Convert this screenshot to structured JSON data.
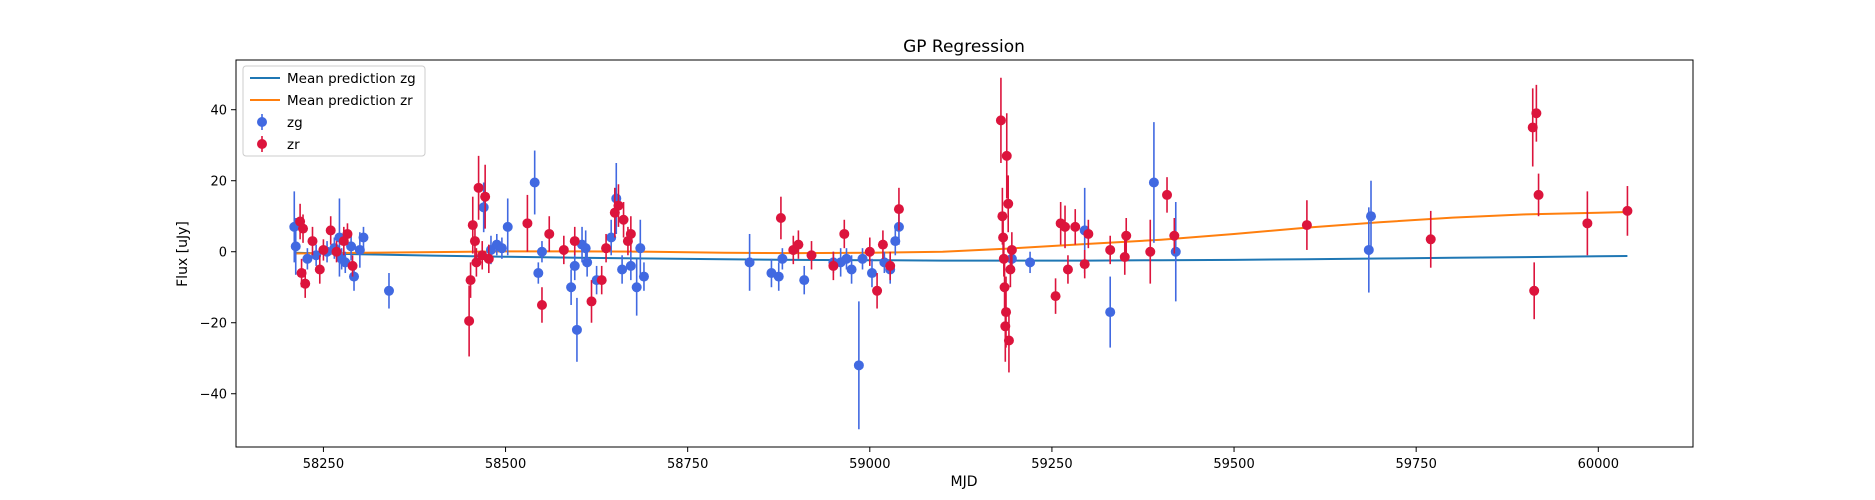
{
  "chart_data": {
    "type": "scatter",
    "title": "GP Regression",
    "xlabel": "MJD",
    "ylabel": "Flux [uJy]",
    "xlim": [
      58130,
      60130
    ],
    "ylim": [
      -55,
      54
    ],
    "xticks": [
      58250,
      58500,
      58750,
      59000,
      59250,
      59500,
      59750,
      60000
    ],
    "xtick_labels": [
      "58250",
      "58500",
      "58750",
      "59000",
      "59250",
      "59500",
      "59750",
      "60000"
    ],
    "yticks": [
      -40,
      -20,
      0,
      20,
      40
    ],
    "ytick_labels": [
      "−40",
      "−20",
      "0",
      "20",
      "40"
    ],
    "grid": false,
    "legend": {
      "position": "top-left",
      "entries": [
        {
          "label": "Mean prediction zg",
          "kind": "line",
          "color": "#1f77b4"
        },
        {
          "label": "Mean prediction zr",
          "kind": "line",
          "color": "#ff7f0e"
        },
        {
          "label": "zg",
          "kind": "errorbar",
          "color": "#4169e1"
        },
        {
          "label": "zr",
          "kind": "errorbar",
          "color": "#dc143c"
        }
      ]
    },
    "lines": [
      {
        "name": "Mean prediction zg",
        "color": "#1f77b4",
        "x": [
          58210,
          58300,
          58400,
          58500,
          58600,
          58700,
          58800,
          58900,
          59000,
          59100,
          59200,
          59300,
          59400,
          59500,
          59600,
          59700,
          59800,
          59900,
          60000,
          60040
        ],
        "y": [
          -0.3,
          -0.7,
          -1.1,
          -1.4,
          -1.7,
          -1.9,
          -2.1,
          -2.3,
          -2.4,
          -2.5,
          -2.5,
          -2.5,
          -2.4,
          -2.3,
          -2.1,
          -1.9,
          -1.7,
          -1.5,
          -1.3,
          -1.2
        ]
      },
      {
        "name": "Mean prediction zr",
        "color": "#ff7f0e",
        "x": [
          58210,
          58300,
          58400,
          58500,
          58600,
          58700,
          58800,
          58900,
          59000,
          59100,
          59200,
          59300,
          59400,
          59500,
          59600,
          59700,
          59800,
          59900,
          60000,
          60040
        ],
        "y": [
          -0.5,
          -0.3,
          -0.1,
          0.1,
          0.1,
          0.0,
          -0.3,
          -0.4,
          -0.3,
          0.0,
          1.0,
          2.2,
          3.4,
          5.0,
          6.8,
          8.3,
          9.6,
          10.5,
          11.0,
          11.2
        ]
      }
    ],
    "series": [
      {
        "name": "zg",
        "color": "#4169e1",
        "points": [
          [
            58210,
            7,
            10
          ],
          [
            58212,
            1.5,
            8
          ],
          [
            58228,
            -2,
            3
          ],
          [
            58240,
            -1,
            3
          ],
          [
            58255,
            0,
            3
          ],
          [
            58265,
            1,
            3
          ],
          [
            58272,
            4,
            11
          ],
          [
            58275,
            -2,
            3
          ],
          [
            58280,
            -3,
            3
          ],
          [
            58288,
            1.5,
            4
          ],
          [
            58292,
            -7,
            4
          ],
          [
            58300,
            0.5,
            5
          ],
          [
            58305,
            4,
            3
          ],
          [
            58340,
            -11,
            5
          ],
          [
            58470,
            12.5,
            7
          ],
          [
            58480,
            0.5,
            4
          ],
          [
            58488,
            2,
            3
          ],
          [
            58495,
            1,
            3
          ],
          [
            58503,
            7,
            8
          ],
          [
            58540,
            19.5,
            9
          ],
          [
            58545,
            -6,
            3
          ],
          [
            58550,
            0,
            3
          ],
          [
            58590,
            -10,
            5
          ],
          [
            58595,
            -4,
            4
          ],
          [
            58598,
            -22,
            9
          ],
          [
            58605,
            2,
            5
          ],
          [
            58610,
            1,
            5
          ],
          [
            58612,
            -3,
            4
          ],
          [
            58625,
            -8,
            4
          ],
          [
            58645,
            4,
            5
          ],
          [
            58652,
            15,
            10
          ],
          [
            58660,
            -5,
            4
          ],
          [
            58672,
            -4,
            4
          ],
          [
            58680,
            -10,
            8
          ],
          [
            58685,
            1,
            8
          ],
          [
            58690,
            -7,
            4
          ],
          [
            58835,
            -3,
            8
          ],
          [
            58865,
            -6,
            4
          ],
          [
            58875,
            -7,
            4
          ],
          [
            58880,
            -2,
            3
          ],
          [
            58910,
            -8,
            4
          ],
          [
            58950,
            -3,
            3
          ],
          [
            58960,
            -3,
            4
          ],
          [
            58968,
            -2,
            3
          ],
          [
            58975,
            -5,
            4
          ],
          [
            58985,
            -32,
            18
          ],
          [
            58990,
            -2,
            3
          ],
          [
            59003,
            -6,
            4
          ],
          [
            59020,
            -3,
            3
          ],
          [
            59028,
            -5,
            4
          ],
          [
            59035,
            3,
            4
          ],
          [
            59040,
            7,
            5
          ],
          [
            59195,
            -2,
            3
          ],
          [
            59220,
            -3,
            3
          ],
          [
            59295,
            6,
            12
          ],
          [
            59330,
            -17,
            10
          ],
          [
            59390,
            19.5,
            17
          ],
          [
            59420,
            0,
            14
          ],
          [
            59685,
            0.5,
            12
          ],
          [
            59688,
            10,
            10
          ]
        ]
      },
      {
        "name": "zr",
        "color": "#dc143c",
        "points": [
          [
            58218,
            8.5,
            5
          ],
          [
            58220,
            -6,
            4
          ],
          [
            58222,
            6.5,
            4
          ],
          [
            58225,
            -9,
            4
          ],
          [
            58235,
            3,
            4
          ],
          [
            58245,
            -5,
            4
          ],
          [
            58250,
            0.5,
            3
          ],
          [
            58260,
            6,
            4
          ],
          [
            58268,
            0,
            3
          ],
          [
            58278,
            3,
            4
          ],
          [
            58283,
            5,
            3
          ],
          [
            58290,
            -4,
            3
          ],
          [
            58450,
            -19.5,
            10
          ],
          [
            58452,
            -8,
            5
          ],
          [
            58455,
            7.5,
            8
          ],
          [
            58458,
            3,
            5
          ],
          [
            58460,
            -3,
            4
          ],
          [
            58463,
            18,
            9
          ],
          [
            58468,
            -1,
            4
          ],
          [
            58472,
            15.5,
            9
          ],
          [
            58477,
            -2,
            4
          ],
          [
            58530,
            8,
            8
          ],
          [
            58550,
            -15,
            5
          ],
          [
            58560,
            5,
            5
          ],
          [
            58580,
            0.5,
            4
          ],
          [
            58595,
            3,
            4
          ],
          [
            58618,
            -14,
            6
          ],
          [
            58632,
            -8,
            4
          ],
          [
            58638,
            1,
            4
          ],
          [
            58650,
            11,
            7
          ],
          [
            58655,
            13,
            6
          ],
          [
            58662,
            9,
            5
          ],
          [
            58668,
            3,
            4
          ],
          [
            58672,
            5,
            5
          ],
          [
            58878,
            9.5,
            6
          ],
          [
            58895,
            0.5,
            4
          ],
          [
            58902,
            2,
            4
          ],
          [
            58920,
            -1,
            4
          ],
          [
            58950,
            -4,
            4
          ],
          [
            58965,
            5,
            4
          ],
          [
            59000,
            0,
            4
          ],
          [
            59010,
            -11,
            5
          ],
          [
            59018,
            2,
            4
          ],
          [
            59028,
            -4,
            4
          ],
          [
            59040,
            12,
            6
          ],
          [
            59180,
            37,
            12
          ],
          [
            59182,
            10,
            8
          ],
          [
            59183,
            4,
            5
          ],
          [
            59184,
            -2,
            5
          ],
          [
            59185,
            -10,
            8
          ],
          [
            59186,
            -21,
            10
          ],
          [
            59187,
            -17,
            10
          ],
          [
            59188,
            27,
            12
          ],
          [
            59190,
            13.5,
            8
          ],
          [
            59191,
            -25,
            9
          ],
          [
            59193,
            -5,
            5
          ],
          [
            59195,
            0.5,
            5
          ],
          [
            59255,
            -12.5,
            5
          ],
          [
            59262,
            8,
            6
          ],
          [
            59268,
            7,
            6
          ],
          [
            59272,
            -5,
            4
          ],
          [
            59282,
            7,
            5
          ],
          [
            59295,
            -3.5,
            4
          ],
          [
            59300,
            5,
            4
          ],
          [
            59330,
            0.5,
            4
          ],
          [
            59350,
            -1.5,
            5
          ],
          [
            59352,
            4.5,
            5
          ],
          [
            59385,
            0,
            9
          ],
          [
            59408,
            16,
            5
          ],
          [
            59418,
            4.5,
            5
          ],
          [
            59600,
            7.5,
            7
          ],
          [
            59770,
            3.5,
            8
          ],
          [
            59910,
            35,
            11
          ],
          [
            59912,
            -11,
            8
          ],
          [
            59915,
            39,
            8
          ],
          [
            59918,
            16,
            6
          ],
          [
            59985,
            8,
            9
          ],
          [
            60040,
            11.5,
            7
          ]
        ]
      }
    ]
  }
}
